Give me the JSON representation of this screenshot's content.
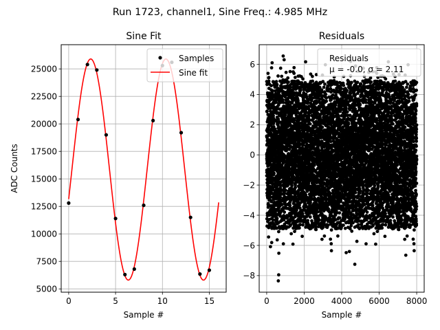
{
  "suptitle": "Run 1723, channel1, Sine Freq.: 4.985 MHz",
  "chart_data": [
    {
      "type": "line",
      "title": "Sine Fit",
      "xlabel": "Sample #",
      "ylabel": "ADC Counts",
      "xlim": [
        -0.8,
        16.8
      ],
      "ylim": [
        4700,
        27200
      ],
      "xticks": [
        0,
        5,
        10,
        15
      ],
      "yticks": [
        5000,
        7500,
        10000,
        12500,
        15000,
        17500,
        20000,
        22500,
        25000
      ],
      "grid": true,
      "legend_position": "top-right",
      "series": [
        {
          "name": "Samples",
          "kind": "scatter",
          "color": "#000000",
          "x": [
            0,
            1,
            2,
            3,
            4,
            5,
            6,
            7,
            8,
            9,
            10,
            11,
            12,
            13,
            14,
            15
          ],
          "y": [
            12800,
            20400,
            25400,
            24900,
            19000,
            11400,
            6300,
            6800,
            12600,
            20300,
            25300,
            25600,
            19200,
            11500,
            6350,
            6700
          ]
        },
        {
          "name": "Sine fit",
          "kind": "line",
          "color": "#ff0000",
          "function": {
            "mean": 15850,
            "amplitude": 10050,
            "period": 8.02,
            "peak_at": 2.35,
            "x_start": 0,
            "x_end": 16
          }
        }
      ]
    },
    {
      "type": "scatter",
      "title": "Residuals",
      "xlabel": "Sample #",
      "ylabel": "",
      "xlim": [
        -400,
        8400
      ],
      "ylim": [
        -9.1,
        7.3
      ],
      "xticks": [
        0,
        2000,
        4000,
        6000,
        8000
      ],
      "yticks": [
        -8,
        -6,
        -4,
        -2,
        0,
        2,
        4,
        6
      ],
      "grid": true,
      "legend_position": "top-right",
      "series": [
        {
          "name": "Residuals",
          "label_line2": "μ = -0.0, σ = 2.11",
          "color": "#000000",
          "n_points": 8000,
          "mean": -0.0,
          "sigma": 2.11,
          "x_range": [
            0,
            8000
          ],
          "core_range": [
            -4.9,
            4.9
          ],
          "outliers": [
            {
              "x": 620,
              "y": -8.35
            },
            {
              "x": 640,
              "y": -7.95
            },
            {
              "x": 880,
              "y": 6.55
            },
            {
              "x": 930,
              "y": 6.3
            },
            {
              "x": 4700,
              "y": -7.25
            },
            {
              "x": 290,
              "y": 6.1
            },
            {
              "x": 7420,
              "y": -6.65
            }
          ]
        }
      ]
    }
  ],
  "legend": {
    "left_samples": "Samples",
    "left_fit": "Sine fit",
    "right_title": "Residuals",
    "right_stats": "μ = -0.0, σ = 2.11"
  }
}
